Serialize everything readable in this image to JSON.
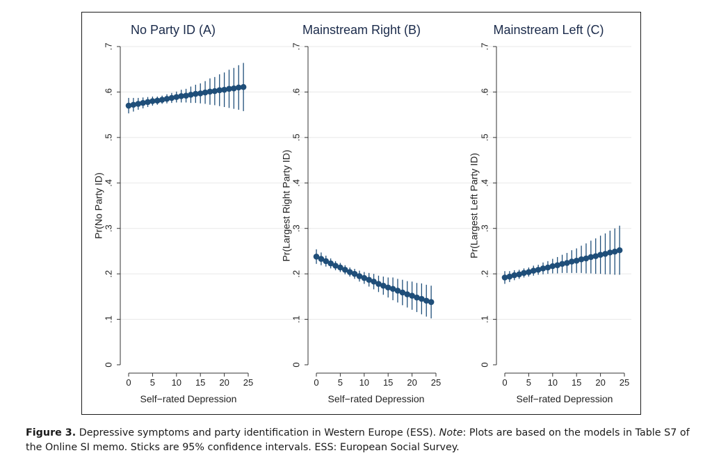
{
  "figure": {
    "caption_label": "Figure 3.",
    "caption_text_1": " Depressive symptoms and party identification in Western Europe (ESS). ",
    "caption_note": "Note",
    "caption_text_2": ": Plots are based on the models in Table S7 of the Online SI memo. Sticks are 95% confidence intervals. ESS: European Social Survey."
  },
  "chart_data": [
    {
      "type": "line",
      "title": "No Party ID (A)",
      "xlabel": "Self−rated Depression",
      "ylabel": "Pr(No Party ID)",
      "xticks": [
        "0",
        "5",
        "10",
        "15",
        "20",
        "25"
      ],
      "yticks": [
        "0",
        ".1",
        ".2",
        ".3",
        ".4",
        ".5",
        ".6",
        ".7"
      ],
      "xlim": [
        0,
        25
      ],
      "ylim": [
        0,
        0.7
      ],
      "grid": true,
      "x": [
        0,
        1,
        2,
        3,
        4,
        5,
        6,
        7,
        8,
        9,
        10,
        11,
        12,
        13,
        14,
        15,
        16,
        17,
        18,
        19,
        20,
        21,
        22,
        23,
        24
      ],
      "series": [
        {
          "values": [
            0.57,
            0.572,
            0.574,
            0.576,
            0.578,
            0.58,
            0.581,
            0.583,
            0.585,
            0.587,
            0.589,
            0.591,
            0.592,
            0.594,
            0.596,
            0.597,
            0.599,
            0.601,
            0.602,
            0.604,
            0.605,
            0.607,
            0.608,
            0.61,
            0.611
          ],
          "ci_low": [
            0.553,
            0.557,
            0.561,
            0.564,
            0.567,
            0.57,
            0.572,
            0.574,
            0.575,
            0.576,
            0.577,
            0.577,
            0.577,
            0.576,
            0.576,
            0.575,
            0.574,
            0.572,
            0.571,
            0.569,
            0.567,
            0.565,
            0.563,
            0.561,
            0.558
          ],
          "ci_high": [
            0.587,
            0.587,
            0.587,
            0.588,
            0.589,
            0.59,
            0.59,
            0.592,
            0.595,
            0.598,
            0.601,
            0.605,
            0.607,
            0.612,
            0.616,
            0.619,
            0.624,
            0.63,
            0.633,
            0.639,
            0.643,
            0.649,
            0.653,
            0.659,
            0.664
          ]
        }
      ]
    },
    {
      "type": "line",
      "title": "Mainstream Right (B)",
      "xlabel": "Self−rated Depression",
      "ylabel": "Pr(Largest Right Party ID)",
      "xticks": [
        "0",
        "5",
        "10",
        "15",
        "20",
        "25"
      ],
      "yticks": [
        "0",
        ".1",
        ".2",
        ".3",
        ".4",
        ".5",
        ".6",
        ".7"
      ],
      "xlim": [
        0,
        25
      ],
      "ylim": [
        0,
        0.7
      ],
      "grid": true,
      "x": [
        0,
        1,
        2,
        3,
        4,
        5,
        6,
        7,
        8,
        9,
        10,
        11,
        12,
        13,
        14,
        15,
        16,
        17,
        18,
        19,
        20,
        21,
        22,
        23,
        24
      ],
      "series": [
        {
          "values": [
            0.238,
            0.233,
            0.228,
            0.223,
            0.218,
            0.214,
            0.209,
            0.204,
            0.2,
            0.195,
            0.191,
            0.187,
            0.183,
            0.178,
            0.174,
            0.17,
            0.167,
            0.163,
            0.159,
            0.155,
            0.152,
            0.148,
            0.145,
            0.141,
            0.138
          ],
          "ci_low": [
            0.222,
            0.219,
            0.216,
            0.212,
            0.208,
            0.204,
            0.199,
            0.194,
            0.189,
            0.183,
            0.178,
            0.172,
            0.166,
            0.16,
            0.154,
            0.148,
            0.142,
            0.137,
            0.131,
            0.126,
            0.121,
            0.116,
            0.111,
            0.106,
            0.102
          ],
          "ci_high": [
            0.254,
            0.247,
            0.24,
            0.234,
            0.228,
            0.224,
            0.219,
            0.214,
            0.211,
            0.207,
            0.204,
            0.202,
            0.2,
            0.196,
            0.194,
            0.192,
            0.192,
            0.189,
            0.187,
            0.184,
            0.183,
            0.18,
            0.179,
            0.176,
            0.174
          ]
        }
      ]
    },
    {
      "type": "line",
      "title": "Mainstream Left (C)",
      "xlabel": "Self−rated Depression",
      "ylabel": "Pr(Largest Left Party ID)",
      "xticks": [
        "0",
        "5",
        "10",
        "15",
        "20",
        "25"
      ],
      "yticks": [
        "0",
        ".1",
        ".2",
        ".3",
        ".4",
        ".5",
        ".6",
        ".7"
      ],
      "xlim": [
        0,
        25
      ],
      "ylim": [
        0,
        0.7
      ],
      "grid": true,
      "x": [
        0,
        1,
        2,
        3,
        4,
        5,
        6,
        7,
        8,
        9,
        10,
        11,
        12,
        13,
        14,
        15,
        16,
        17,
        18,
        19,
        20,
        21,
        22,
        23,
        24
      ],
      "series": [
        {
          "values": [
            0.192,
            0.194,
            0.197,
            0.199,
            0.202,
            0.204,
            0.207,
            0.209,
            0.212,
            0.214,
            0.217,
            0.219,
            0.222,
            0.224,
            0.227,
            0.229,
            0.232,
            0.234,
            0.237,
            0.239,
            0.242,
            0.244,
            0.247,
            0.249,
            0.252
          ],
          "ci_low": [
            0.178,
            0.182,
            0.186,
            0.189,
            0.192,
            0.194,
            0.196,
            0.198,
            0.199,
            0.2,
            0.201,
            0.201,
            0.202,
            0.202,
            0.202,
            0.202,
            0.202,
            0.201,
            0.201,
            0.2,
            0.2,
            0.199,
            0.199,
            0.198,
            0.198
          ],
          "ci_high": [
            0.206,
            0.206,
            0.208,
            0.209,
            0.212,
            0.214,
            0.218,
            0.22,
            0.225,
            0.228,
            0.233,
            0.237,
            0.242,
            0.246,
            0.252,
            0.256,
            0.262,
            0.267,
            0.273,
            0.278,
            0.284,
            0.289,
            0.295,
            0.3,
            0.306
          ]
        }
      ]
    }
  ],
  "colors": {
    "marker": "#1f4e79",
    "ci": "#1f4e79",
    "grid": "#e8e8e8",
    "axis": "#333333"
  }
}
